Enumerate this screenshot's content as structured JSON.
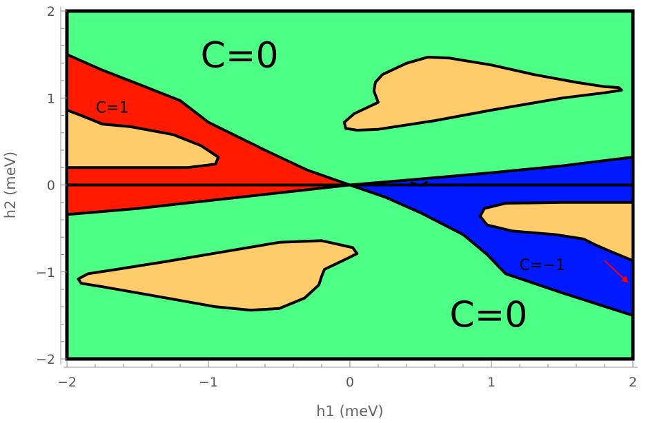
{
  "chart_data": {
    "type": "region-map",
    "xlabel": "h1 (meV)",
    "ylabel": "h2 (meV)",
    "xlim": [
      -2,
      2
    ],
    "ylim": [
      -2,
      2
    ],
    "xticks": [
      -2,
      -1,
      0,
      1,
      2
    ],
    "yticks": [
      -2,
      -1,
      0,
      1,
      2
    ],
    "xtick_labels": [
      "−2",
      "−1",
      "0",
      "1",
      "2"
    ],
    "ytick_labels": [
      "−2",
      "−1",
      "0",
      "1",
      "2"
    ],
    "colors": {
      "background": "#4dff85",
      "chern_plus": "#ff1a00",
      "chern_minus": "#0019ff",
      "pocket": "#ffcc6b",
      "border": "#000000",
      "arrow": "#ff0000"
    },
    "regions": [
      {
        "name": "C=1 wedge",
        "fill": "chern_plus",
        "points": [
          [
            -2,
            1.5
          ],
          [
            -1.75,
            1.32
          ],
          [
            -1.45,
            1.13
          ],
          [
            -1.2,
            0.97
          ],
          [
            -1.0,
            0.72
          ],
          [
            -0.6,
            0.4
          ],
          [
            -0.3,
            0.17
          ],
          [
            0,
            0
          ],
          [
            -0.5,
            -0.09
          ],
          [
            -1.0,
            -0.18
          ],
          [
            -1.5,
            -0.27
          ],
          [
            -2,
            -0.34
          ]
        ]
      },
      {
        "name": "C=-1 wedge",
        "fill": "chern_minus",
        "points": [
          [
            0,
            0
          ],
          [
            0.5,
            0.07
          ],
          [
            1.0,
            0.14
          ],
          [
            1.5,
            0.22
          ],
          [
            2,
            0.32
          ],
          [
            2,
            -1.5
          ],
          [
            1.5,
            -1.24
          ],
          [
            1.1,
            -1.02
          ],
          [
            0.97,
            -0.8
          ],
          [
            0.8,
            -0.57
          ],
          [
            0.5,
            -0.32
          ],
          [
            0.25,
            -0.14
          ]
        ]
      },
      {
        "name": "pocket upper right",
        "fill": "pocket",
        "points": [
          [
            -0.04,
            0.72
          ],
          [
            0.03,
            0.82
          ],
          [
            0.2,
            0.95
          ],
          [
            0.17,
            1.08
          ],
          [
            0.18,
            1.18
          ],
          [
            0.23,
            1.27
          ],
          [
            0.4,
            1.4
          ],
          [
            0.55,
            1.47
          ],
          [
            0.7,
            1.46
          ],
          [
            1.0,
            1.38
          ],
          [
            1.3,
            1.27
          ],
          [
            1.6,
            1.18
          ],
          [
            1.8,
            1.13
          ],
          [
            1.9,
            1.12
          ],
          [
            1.92,
            1.09
          ],
          [
            1.8,
            1.06
          ],
          [
            1.5,
            1.0
          ],
          [
            1.0,
            0.86
          ],
          [
            0.6,
            0.74
          ],
          [
            0.2,
            0.64
          ],
          [
            0.05,
            0.63
          ],
          [
            -0.03,
            0.65
          ]
        ]
      },
      {
        "name": "pocket upper left",
        "fill": "pocket",
        "points": [
          [
            -2,
            0.86
          ],
          [
            -1.9,
            0.8
          ],
          [
            -1.75,
            0.7
          ],
          [
            -1.55,
            0.67
          ],
          [
            -1.25,
            0.58
          ],
          [
            -1.05,
            0.45
          ],
          [
            -0.93,
            0.32
          ],
          [
            -0.95,
            0.24
          ],
          [
            -1.15,
            0.2
          ],
          [
            -1.5,
            0.2
          ],
          [
            -2,
            0.2
          ]
        ]
      },
      {
        "name": "pocket lower left",
        "fill": "pocket",
        "points": [
          [
            -1.92,
            -1.08
          ],
          [
            -1.85,
            -1.02
          ],
          [
            -1.65,
            -0.97
          ],
          [
            -1.3,
            -0.88
          ],
          [
            -0.9,
            -0.77
          ],
          [
            -0.5,
            -0.66
          ],
          [
            -0.2,
            -0.64
          ],
          [
            0.02,
            -0.72
          ],
          [
            0.05,
            -0.79
          ],
          [
            -0.05,
            -0.87
          ],
          [
            -0.18,
            -0.97
          ],
          [
            -0.2,
            -1.05
          ],
          [
            -0.22,
            -1.15
          ],
          [
            -0.32,
            -1.3
          ],
          [
            -0.5,
            -1.42
          ],
          [
            -0.7,
            -1.44
          ],
          [
            -0.95,
            -1.4
          ],
          [
            -1.4,
            -1.27
          ],
          [
            -1.75,
            -1.17
          ],
          [
            -1.9,
            -1.13
          ]
        ]
      },
      {
        "name": "pocket lower right",
        "fill": "pocket",
        "points": [
          [
            2,
            -0.2
          ],
          [
            1.5,
            -0.2
          ],
          [
            1.1,
            -0.21
          ],
          [
            0.95,
            -0.27
          ],
          [
            0.92,
            -0.36
          ],
          [
            0.97,
            -0.46
          ],
          [
            1.15,
            -0.53
          ],
          [
            1.45,
            -0.57
          ],
          [
            1.65,
            -0.62
          ],
          [
            1.75,
            -0.7
          ],
          [
            1.85,
            -0.77
          ],
          [
            2,
            -0.87
          ]
        ]
      }
    ],
    "lines": [
      {
        "name": "h2 = 0 line",
        "points": [
          [
            -2,
            0
          ],
          [
            2,
            0
          ]
        ]
      }
    ],
    "annotations": [
      {
        "text": "C=0",
        "x": -0.78,
        "y": 1.46,
        "style": "big"
      },
      {
        "text": "C=0",
        "x": 0.98,
        "y": -1.52,
        "style": "big"
      },
      {
        "text": "C=1",
        "x": -1.68,
        "y": 0.88,
        "style": "small"
      },
      {
        "text": "C=−1",
        "x": 1.36,
        "y": -0.93,
        "style": "small"
      }
    ],
    "arrow": {
      "from": [
        1.8,
        -0.87
      ],
      "to": [
        1.98,
        -1.17
      ]
    }
  }
}
